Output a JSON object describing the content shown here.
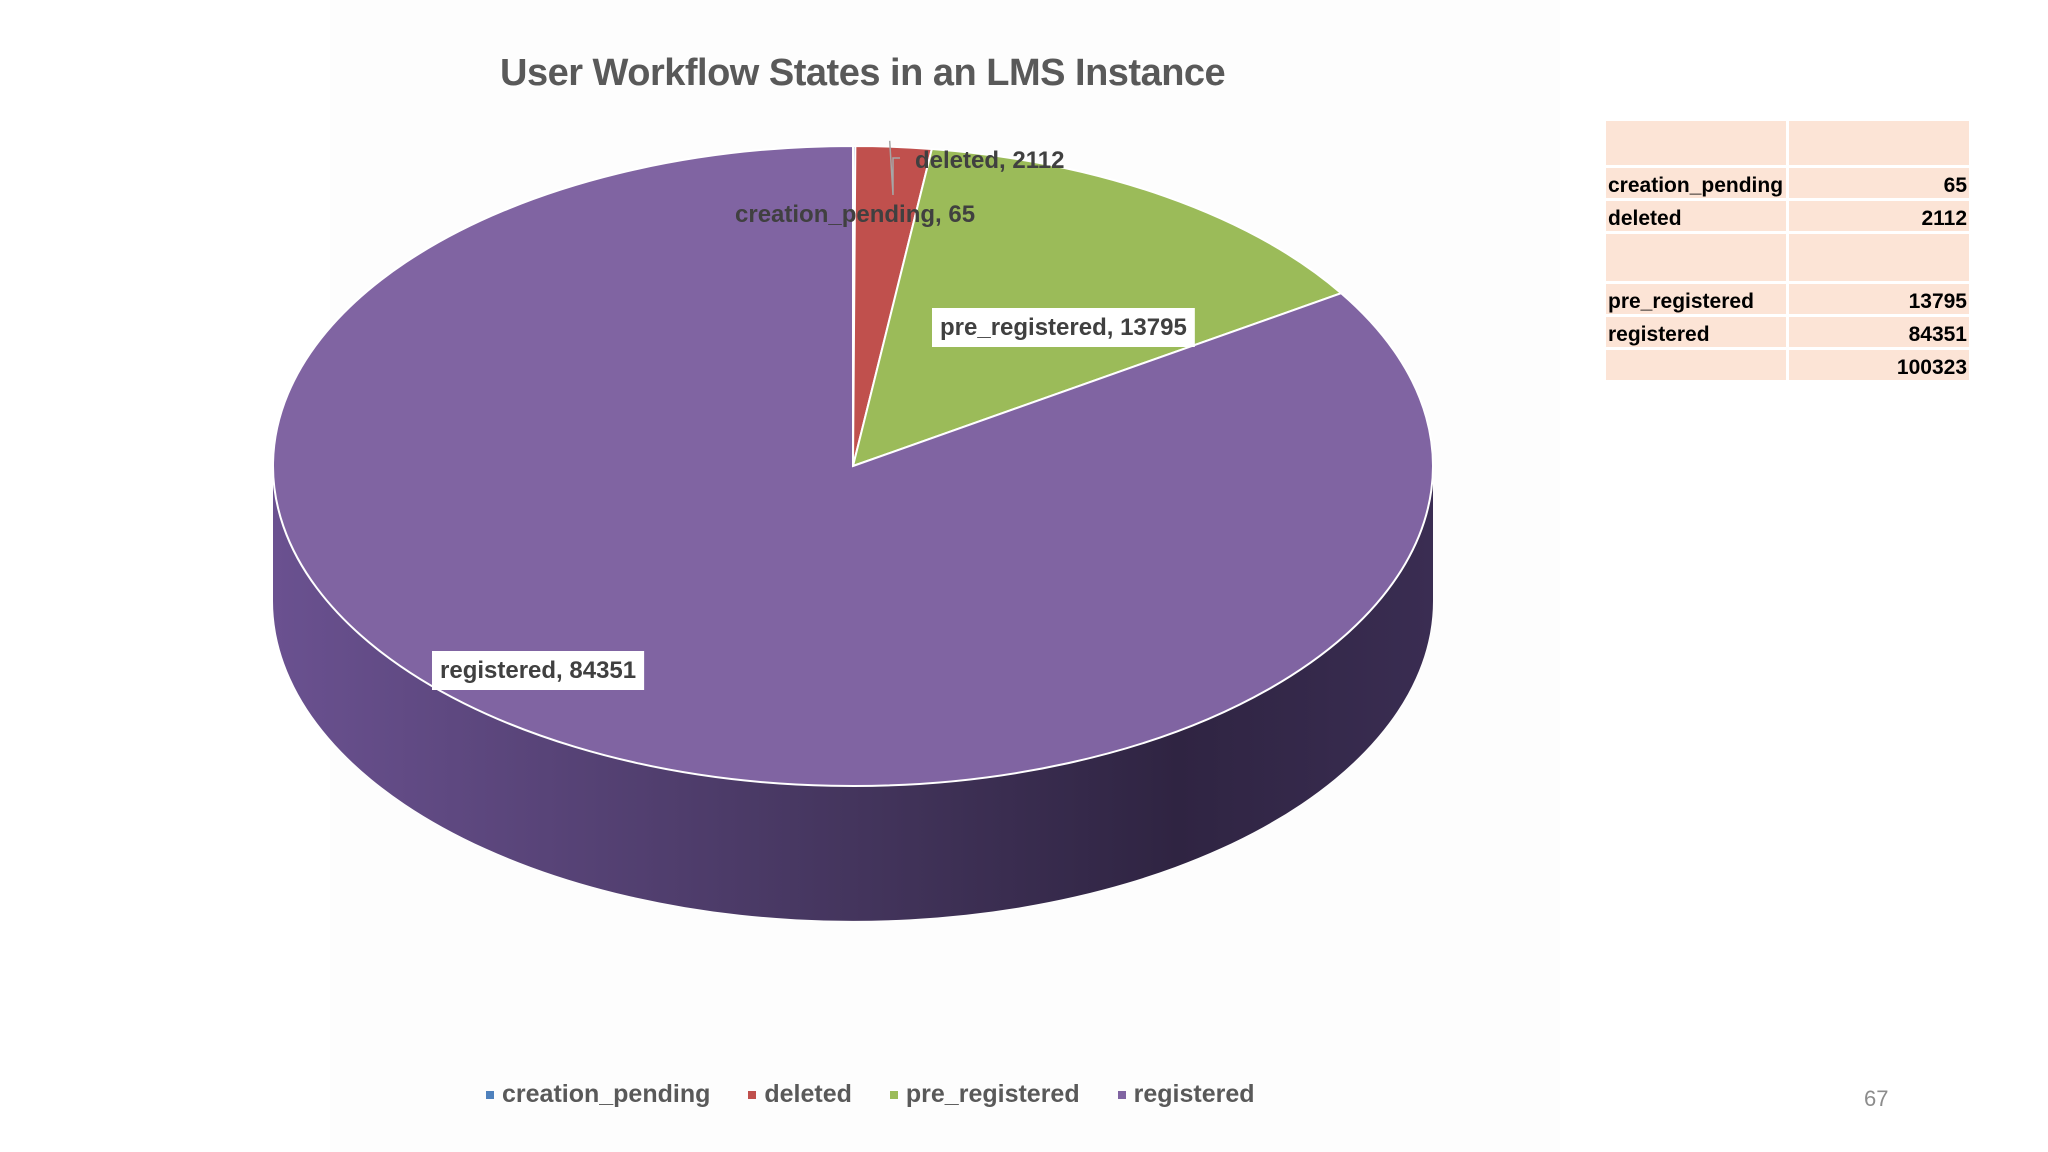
{
  "chart_data": {
    "type": "pie",
    "title": "User Workflow States in an LMS Instance",
    "categories": [
      "creation_pending",
      "deleted",
      "pre_registered",
      "registered"
    ],
    "values": [
      65,
      2112,
      13795,
      84351
    ],
    "colors": [
      "#4f81bd",
      "#c0504d",
      "#9bbb59",
      "#8064a2"
    ],
    "data_labels": [
      "creation_pending, 65",
      "deleted, 2112",
      "pre_registered, 13795",
      "registered, 84351"
    ],
    "legend_position": "bottom",
    "style": "3d"
  },
  "side_table": {
    "rows": [
      {
        "name": "",
        "value": ""
      },
      {
        "name": "creation_pending",
        "value": "65"
      },
      {
        "name": "deleted",
        "value": "2112"
      },
      {
        "name": "",
        "value": ""
      },
      {
        "name": "pre_registered",
        "value": "13795"
      },
      {
        "name": "registered",
        "value": "84351"
      },
      {
        "name": "",
        "value": "100323"
      }
    ]
  },
  "page_number": "67"
}
